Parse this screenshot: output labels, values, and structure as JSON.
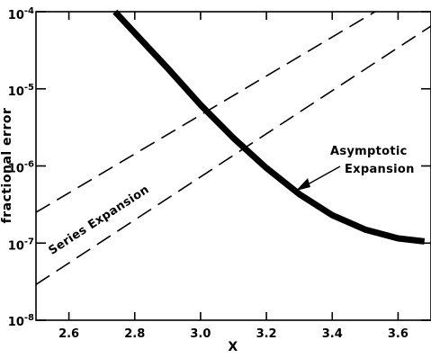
{
  "chart_data": {
    "type": "line",
    "xlabel": "X",
    "ylabel": "fractional error",
    "xlim": [
      2.5,
      3.7
    ],
    "ylim": [
      1e-08,
      0.0001
    ],
    "yscale": "log",
    "grid": false,
    "legend": "none",
    "xticks": [
      {
        "value": 2.6,
        "label": "2.6"
      },
      {
        "value": 2.8,
        "label": "2.8"
      },
      {
        "value": 3.0,
        "label": "3.0"
      },
      {
        "value": 3.2,
        "label": "3.2"
      },
      {
        "value": 3.4,
        "label": "3.4"
      },
      {
        "value": 3.6,
        "label": "3.6"
      }
    ],
    "yticks": [
      {
        "value": 1e-08,
        "base": "10",
        "exp": "-8"
      },
      {
        "value": 1e-07,
        "base": "10",
        "exp": "-7"
      },
      {
        "value": 1e-06,
        "base": "10",
        "exp": "-6"
      },
      {
        "value": 1e-05,
        "base": "10",
        "exp": "-5"
      },
      {
        "value": 0.0001,
        "base": "10",
        "exp": "-4"
      }
    ],
    "series": [
      {
        "style": "thick-solid",
        "color": "#000000",
        "x": [
          2.74,
          2.8,
          2.9,
          3.0,
          3.1,
          3.2,
          3.3,
          3.4,
          3.5,
          3.6,
          3.68
        ],
        "y": [
          0.0001,
          5.3e-05,
          1.85e-05,
          6.2e-06,
          2.3e-06,
          9.4e-07,
          4.3e-07,
          2.3e-07,
          1.5e-07,
          1.15e-07,
          1.05e-07
        ]
      },
      {
        "style": "dashed",
        "color": "#000000",
        "x": [
          2.5,
          3.53
        ],
        "y": [
          2.5e-07,
          0.0001
        ]
      },
      {
        "style": "dashed",
        "color": "#000000",
        "x": [
          2.5,
          3.7
        ],
        "y": [
          2.9e-08,
          6.5e-05
        ]
      }
    ],
    "annotations": [
      {
        "text": "Series Expansion"
      },
      {
        "text": "Asymptotic"
      },
      {
        "text": "Expansion"
      }
    ]
  }
}
